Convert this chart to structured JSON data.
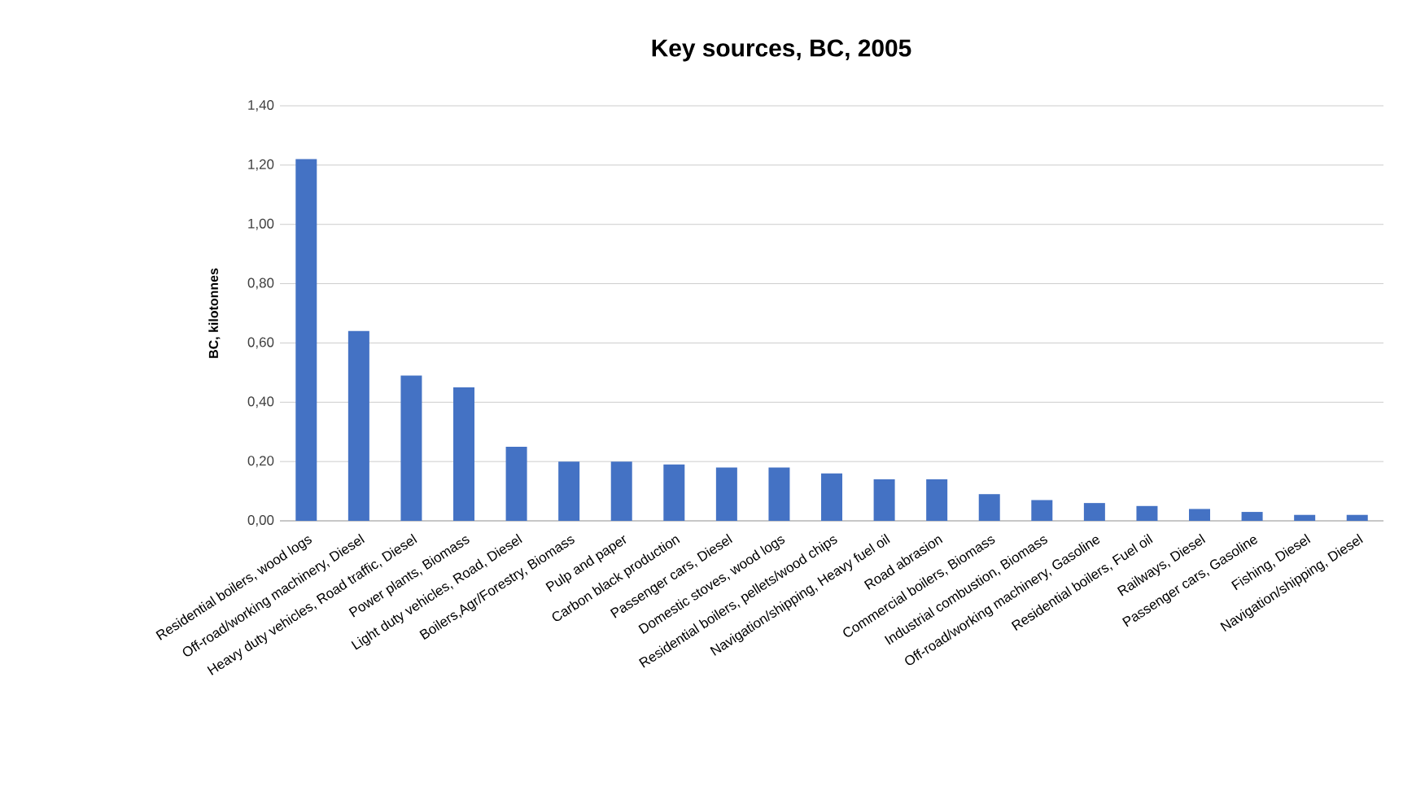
{
  "chart_data": {
    "type": "bar",
    "title": "Key sources, BC, 2005",
    "ylabel": "BC, kilotonnes",
    "categories": [
      "Residential boilers, wood logs",
      "Off-road/working machinery, Diesel",
      "Heavy duty vehicles, Road traffic, Diesel",
      "Power plants, Biomass",
      "Light duty vehicles, Road, Diesel",
      "Boilers,Agr/Forestry, Biomass",
      "Pulp and paper",
      "Carbon black production",
      "Passenger cars, Diesel",
      "Domestic stoves, wood logs",
      "Residential boilers, pellets/wood chips",
      "Navigation/shipping, Heavy fuel oil",
      "Road abrasion",
      "Commercial boilers, Biomass",
      "Industrial combustion, Biomass",
      "Off-road/working machinery, Gasoline",
      "Residential boilers, Fuel oil",
      "Railways, Diesel",
      "Passenger cars, Gasoline",
      "Fishing, Diesel",
      "Navigation/shipping, Diesel"
    ],
    "values": [
      1.22,
      0.64,
      0.49,
      0.45,
      0.25,
      0.2,
      0.2,
      0.19,
      0.18,
      0.18,
      0.16,
      0.14,
      0.14,
      0.09,
      0.07,
      0.06,
      0.05,
      0.04,
      0.03,
      0.02,
      0.02
    ],
    "color": "#4472c4",
    "ylim": [
      0,
      1.4
    ],
    "yticks": [
      {
        "value": 0,
        "label": "0,00"
      },
      {
        "value": 0.2,
        "label": "0,20"
      },
      {
        "value": 0.4,
        "label": "0,40"
      },
      {
        "value": 0.6,
        "label": "0,60"
      },
      {
        "value": 0.8,
        "label": "0,80"
      },
      {
        "value": 1.0,
        "label": "1,00"
      },
      {
        "value": 1.2,
        "label": "1,20"
      },
      {
        "value": 1.4,
        "label": "1,40"
      }
    ],
    "grid": "y"
  }
}
